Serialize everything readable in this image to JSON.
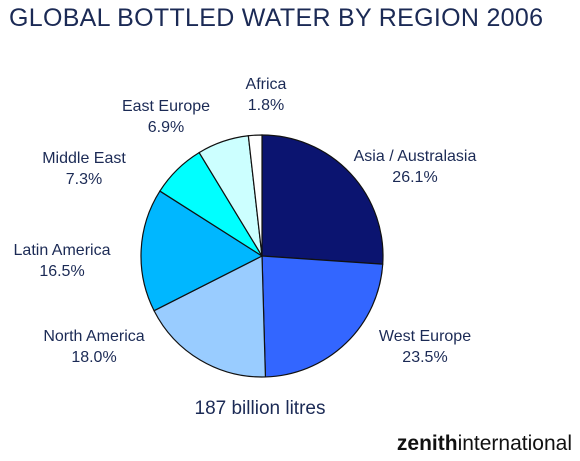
{
  "title": "GLOBAL BOTTLED WATER BY REGION 2006",
  "total_note": "187 billion litres",
  "logo": {
    "bold": "zenith",
    "light": "international"
  },
  "chart_data": {
    "type": "pie",
    "title": "GLOBAL BOTTLED WATER BY REGION 2006",
    "start_angle_deg": 0,
    "direction": "clockwise",
    "slices": [
      {
        "label": "Asia / Australasia",
        "value": 26.1,
        "value_text": "26.1%",
        "color": "#0b1470"
      },
      {
        "label": "West Europe",
        "value": 23.5,
        "value_text": "23.5%",
        "color": "#3366ff"
      },
      {
        "label": "North America",
        "value": 18.0,
        "value_text": "18.0%",
        "color": "#99ccff"
      },
      {
        "label": "Latin America",
        "value": 16.5,
        "value_text": "16.5%",
        "color": "#00b7ff"
      },
      {
        "label": "Middle East",
        "value": 7.3,
        "value_text": "7.3%",
        "color": "#00ffff"
      },
      {
        "label": "East Europe",
        "value": 6.9,
        "value_text": "6.9%",
        "color": "#ccffff"
      },
      {
        "label": "Africa",
        "value": 1.8,
        "value_text": "1.8%",
        "color": "#ffffff"
      }
    ]
  }
}
